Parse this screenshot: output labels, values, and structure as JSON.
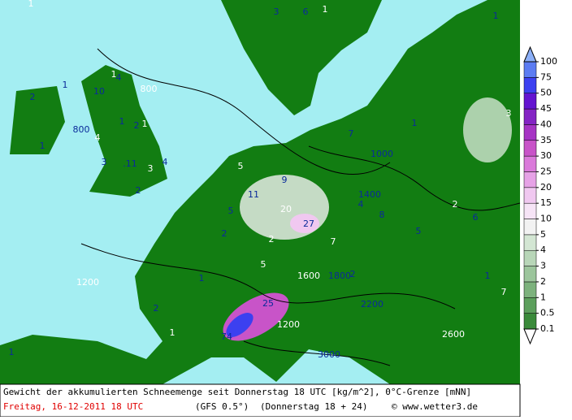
{
  "colorbar": {
    "levels": [
      0.1,
      0.5,
      1,
      2,
      3,
      4,
      5,
      10,
      15,
      20,
      25,
      30,
      35,
      40,
      45,
      50,
      75,
      100
    ],
    "colors": [
      "#3a8a3a",
      "#5c9f5c",
      "#7db27d",
      "#9cc59c",
      "#b8d6b8",
      "#d3e6d3",
      "#f2f2f2",
      "#f6e4f6",
      "#f0c8f0",
      "#e6a2e6",
      "#da7ada",
      "#c854c8",
      "#a634c4",
      "#8424c4",
      "#6414d0",
      "#3c40f0",
      "#5c7cf2"
    ],
    "top_color": "#8cb0f8",
    "bottom_color": "#ffffff"
  },
  "map_labels": [
    "1",
    "3",
    "6",
    "1",
    "2",
    "1",
    "1",
    "4",
    "10",
    "800",
    "1",
    "2",
    "1",
    "800",
    "1",
    "4",
    "3",
    ".11",
    "3",
    "4",
    "2",
    "5",
    "11",
    "9",
    "20",
    "27",
    "4",
    "7",
    "2",
    "5",
    "2",
    "7",
    "1",
    "5",
    "2",
    "1",
    "1200",
    "25",
    "74",
    "1",
    "2",
    "1",
    "1200",
    "1000",
    "1400",
    "1600",
    "1800",
    "2200",
    "2600",
    "3000",
    "5",
    "7",
    "1",
    "6",
    "3",
    "1",
    "8",
    "2"
  ],
  "footer": {
    "line1": "Gewicht der akkumulierten Schneemenge seit Donnerstag 18 UTC [kg/m^2], 0°C-Grenze [mNN]",
    "date": "Freitag, 16-12-2011  18 UTC",
    "model": "(GFS 0.5°)",
    "run": "(Donnerstag 18 + 24)",
    "credit": "© www.wetter3.de"
  }
}
